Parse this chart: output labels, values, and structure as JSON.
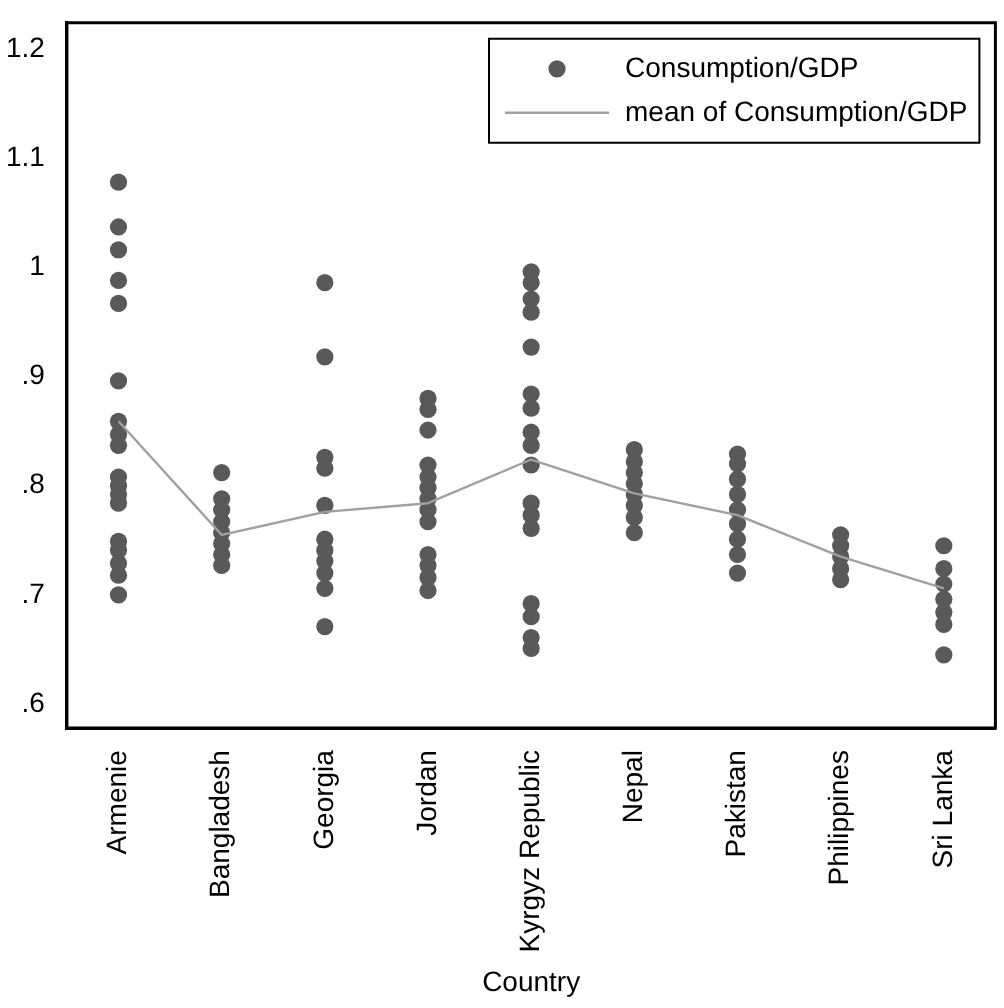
{
  "chart_data": {
    "type": "scatter",
    "xlabel": "Country",
    "categories": [
      "Armenie",
      "Bangladesh",
      "Georgia",
      "Jordan",
      "Kyrgyz Republic",
      "Nepal",
      "Pakistan",
      "Philippines",
      "Sri Lanka"
    ],
    "ylim": [
      0.578,
      1.224
    ],
    "yticks": [
      {
        "value": 0.6,
        "label": ".6"
      },
      {
        "value": 0.7,
        "label": ".7"
      },
      {
        "value": 0.8,
        "label": ".8"
      },
      {
        "value": 0.9,
        "label": ".9"
      },
      1,
      1.1,
      1.2
    ],
    "grid": false,
    "legend": "top right",
    "marker": "circle",
    "series": [
      {
        "name": "Consumption/GDP",
        "type": "scatter",
        "color": "#595959",
        "x": [
          "Armenie",
          "Armenie",
          "Armenie",
          "Armenie",
          "Armenie",
          "Armenie",
          "Armenie",
          "Armenie",
          "Armenie",
          "Armenie",
          "Armenie",
          "Armenie",
          "Armenie",
          "Armenie",
          "Armenie",
          "Armenie",
          "Armenie",
          "Armenie",
          "Bangladesh",
          "Bangladesh",
          "Bangladesh",
          "Bangladesh",
          "Bangladesh",
          "Bangladesh",
          "Bangladesh",
          "Bangladesh",
          "Georgia",
          "Georgia",
          "Georgia",
          "Georgia",
          "Georgia",
          "Georgia",
          "Georgia",
          "Georgia",
          "Georgia",
          "Georgia",
          "Georgia",
          "Jordan",
          "Jordan",
          "Jordan",
          "Jordan",
          "Jordan",
          "Jordan",
          "Jordan",
          "Jordan",
          "Jordan",
          "Jordan",
          "Jordan",
          "Jordan",
          "Jordan",
          "Kyrgyz Republic",
          "Kyrgyz Republic",
          "Kyrgyz Republic",
          "Kyrgyz Republic",
          "Kyrgyz Republic",
          "Kyrgyz Republic",
          "Kyrgyz Republic",
          "Kyrgyz Republic",
          "Kyrgyz Republic",
          "Kyrgyz Republic",
          "Kyrgyz Republic",
          "Kyrgyz Republic",
          "Kyrgyz Republic",
          "Kyrgyz Republic",
          "Kyrgyz Republic",
          "Kyrgyz Republic",
          "Kyrgyz Republic",
          "Nepal",
          "Nepal",
          "Nepal",
          "Nepal",
          "Nepal",
          "Nepal",
          "Nepal",
          "Nepal",
          "Pakistan",
          "Pakistan",
          "Pakistan",
          "Pakistan",
          "Pakistan",
          "Pakistan",
          "Pakistan",
          "Pakistan",
          "Pakistan",
          "Philippines",
          "Philippines",
          "Philippines",
          "Philippines",
          "Philippines",
          "Sri Lanka",
          "Sri Lanka",
          "Sri Lanka",
          "Sri Lanka",
          "Sri Lanka",
          "Sri Lanka",
          "Sri Lanka"
        ],
        "values": [
          1.078,
          1.037,
          1.016,
          0.988,
          0.967,
          0.896,
          0.859,
          0.847,
          0.837,
          0.808,
          0.8,
          0.792,
          0.784,
          0.749,
          0.741,
          0.729,
          0.718,
          0.7,
          0.812,
          0.788,
          0.778,
          0.767,
          0.757,
          0.747,
          0.737,
          0.727,
          0.986,
          0.918,
          0.826,
          0.816,
          0.782,
          0.751,
          0.741,
          0.731,
          0.72,
          0.706,
          0.671,
          0.88,
          0.87,
          0.851,
          0.819,
          0.808,
          0.798,
          0.788,
          0.778,
          0.767,
          0.737,
          0.727,
          0.716,
          0.704,
          0.996,
          0.986,
          0.971,
          0.959,
          0.927,
          0.884,
          0.871,
          0.849,
          0.837,
          0.819,
          0.784,
          0.773,
          0.761,
          0.692,
          0.68,
          0.661,
          0.651,
          0.833,
          0.822,
          0.812,
          0.802,
          0.792,
          0.782,
          0.771,
          0.757,
          0.829,
          0.82,
          0.806,
          0.792,
          0.778,
          0.765,
          0.751,
          0.737,
          0.72,
          0.755,
          0.745,
          0.735,
          0.724,
          0.714,
          0.745,
          0.724,
          0.71,
          0.696,
          0.684,
          0.673,
          0.645
        ]
      },
      {
        "name": "mean of Consumption/GDP",
        "type": "line",
        "color": "#a0a0a0",
        "marker": "none",
        "values": [
          0.859,
          0.755,
          0.776,
          0.784,
          0.824,
          0.793,
          0.773,
          0.735,
          0.706
        ]
      }
    ]
  }
}
